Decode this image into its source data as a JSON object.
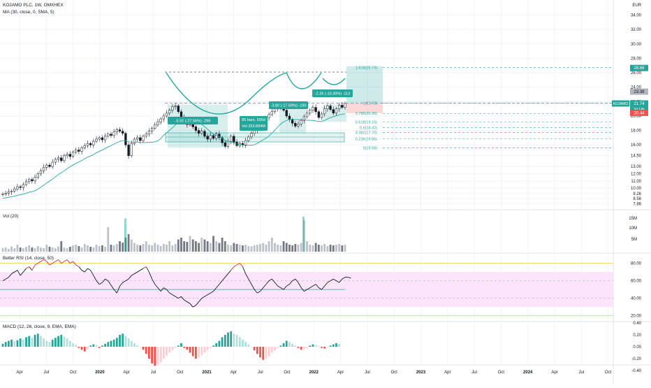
{
  "header": {
    "symbol_line": "KOJAMO PLC, 1W, OMXHEX",
    "ma_line": "MA (30, close, 0, SMA, 5)",
    "currency": "EUR"
  },
  "price_axis": {
    "ticks": [
      "34.00",
      "32.00",
      "30.00",
      "28.00",
      "26.00",
      "24.00",
      "22.00",
      "20.00",
      "18.00",
      "16.00",
      "14.50",
      "13.00",
      "12.00",
      "11.00",
      "10.00",
      "9.26",
      "8.56",
      "7.86"
    ],
    "labels": {
      "target": "26.66",
      "upper": "23.38",
      "ticker": "KOJAMO",
      "price": "21.74",
      "countdown": "3d 14h",
      "stop": "20.44"
    }
  },
  "fib_levels": [
    "1.618(26.74)",
    "1(21.78)",
    "0.786(20.36)",
    "0.618(19.16)",
    "0.5(18.42)",
    "0.382(17.70)",
    "0.236(16.86)",
    "0(15.58)"
  ],
  "annotations": {
    "range1": "-5.92 (-27.56%) -296",
    "range2": "-3.80 (-17.69%) -190",
    "range3": "-2.26 (-10.39%) -113",
    "bars": "85 bars, 595d",
    "vol": "Vol 253.894M"
  },
  "volume_pane": {
    "title": "Vol (20)",
    "ticks": [
      "15M",
      "10M",
      "5M"
    ]
  },
  "rsi_pane": {
    "title": "Better RSI (14, close, 50)",
    "ticks": [
      "80.00",
      "60.00",
      "40.00",
      "20.00"
    ]
  },
  "macd_pane": {
    "title": "MACD (12, 26, close, 9, EMA, EMA)",
    "ticks": [
      "0.40",
      "0.20",
      "0.00",
      "-0.20",
      "-0.40"
    ]
  },
  "time_axis": {
    "labels": [
      "Apr",
      "Jul",
      "Oct",
      "2020",
      "Apr",
      "Jul",
      "Oct",
      "2021",
      "Apr",
      "Jul",
      "Oct",
      "2022",
      "Apr",
      "Jul",
      "Oct",
      "2023",
      "Apr",
      "Jul",
      "Oct",
      "2024",
      "Apr",
      "Jul",
      "Oct"
    ]
  },
  "colors": {
    "up": "#26a69a",
    "down": "#ef5350",
    "candle": "#131722",
    "ma": "#26a69a",
    "rsi_band": "#fce4fb",
    "grid": "#f0f3fa"
  },
  "chart_data": {
    "type": "candlestick",
    "price_series_weekly_close": [
      9.2,
      9.3,
      9.5,
      9.6,
      9.9,
      10.2,
      10.1,
      10.5,
      10.9,
      11.2,
      11.0,
      11.5,
      12.0,
      12.4,
      12.9,
      13.2,
      13.0,
      13.6,
      14.0,
      14.2,
      13.8,
      14.5,
      14.7,
      14.4,
      15.0,
      15.3,
      15.1,
      15.6,
      15.9,
      16.2,
      16.0,
      16.5,
      16.8,
      17.0,
      16.7,
      17.2,
      17.5,
      17.3,
      17.8,
      18.1,
      17.9,
      17.6,
      16.0,
      14.5,
      16.2,
      16.8,
      17.0,
      16.6,
      17.2,
      17.5,
      17.9,
      18.3,
      18.8,
      19.2,
      19.6,
      20.0,
      20.4,
      20.8,
      21.3,
      21.4,
      20.6,
      19.8,
      19.2,
      18.8,
      19.3,
      18.5,
      18.0,
      17.6,
      17.9,
      17.2,
      16.8,
      17.3,
      16.9,
      17.5,
      17.0,
      16.3,
      15.8,
      16.5,
      17.2,
      16.4,
      15.9,
      16.2,
      16.0,
      16.6,
      17.1,
      17.6,
      18.0,
      18.5,
      18.9,
      19.3,
      19.8,
      20.2,
      20.6,
      21.0,
      21.3,
      21.5,
      20.8,
      20.0,
      19.5,
      19.0,
      18.6,
      18.9,
      19.4,
      19.9,
      20.4,
      20.8,
      21.2,
      20.6,
      19.8,
      20.3,
      21.0,
      21.4,
      20.9,
      20.4,
      21.0,
      21.5,
      21.2,
      21.74
    ],
    "ma_period": 30,
    "volume_rel": [
      0.1,
      0.12,
      0.08,
      0.15,
      0.1,
      0.2,
      0.12,
      0.1,
      0.14,
      0.18,
      0.12,
      0.1,
      0.16,
      0.12,
      0.1,
      0.2,
      0.14,
      0.12,
      0.1,
      0.15,
      0.3,
      0.12,
      0.1,
      0.14,
      0.18,
      0.2,
      0.16,
      0.12,
      0.22,
      0.18,
      0.14,
      0.12,
      0.2,
      0.16,
      0.18,
      0.14,
      0.7,
      0.2,
      0.18,
      0.22,
      0.3,
      0.26,
      0.4,
      0.5,
      0.35,
      0.25,
      0.2,
      0.18,
      0.22,
      0.3,
      0.2,
      0.18,
      0.25,
      0.2,
      0.16,
      0.22,
      0.2,
      0.3,
      0.18,
      0.22,
      0.35,
      0.4,
      0.3,
      0.28,
      0.45,
      0.35,
      0.3,
      0.25,
      0.4,
      0.35,
      0.3,
      0.25,
      0.45,
      0.3,
      0.25,
      0.4,
      0.3,
      0.2,
      0.18,
      0.25,
      0.22,
      0.2,
      0.18,
      0.2,
      0.16,
      0.15,
      0.18,
      0.2,
      0.22,
      0.25,
      0.2,
      0.3,
      0.4,
      0.25,
      0.2,
      0.18,
      0.3,
      0.25,
      0.2,
      0.18,
      0.22,
      0.2,
      0.25,
      0.9,
      0.3,
      0.2,
      0.18,
      0.25,
      0.2,
      0.18,
      0.22,
      0.16,
      0.2,
      0.18,
      0.2,
      0.22,
      0.18,
      0.2
    ],
    "rsi": [
      60,
      62,
      64,
      68,
      70,
      72,
      66,
      70,
      74,
      76,
      72,
      78,
      80,
      82,
      84,
      82,
      78,
      80,
      82,
      84,
      80,
      82,
      84,
      80,
      82,
      78,
      76,
      72,
      70,
      74,
      72,
      66,
      60,
      56,
      58,
      62,
      60,
      55,
      50,
      46,
      54,
      58,
      60,
      62,
      66,
      68,
      70,
      72,
      74,
      76,
      70,
      62,
      56,
      52,
      48,
      52,
      50,
      46,
      44,
      42,
      40,
      42,
      38,
      36,
      34,
      30,
      32,
      36,
      40,
      42,
      44,
      46,
      48,
      52,
      56,
      60,
      64,
      68,
      72,
      76,
      78,
      80,
      76,
      68,
      62,
      56,
      50,
      46,
      48,
      52,
      56,
      60,
      62,
      58,
      54,
      52,
      50,
      54,
      56,
      60,
      62,
      58,
      52,
      48,
      50,
      52,
      54,
      56,
      52,
      50,
      54,
      58,
      60,
      62,
      60,
      58,
      62,
      64,
      64,
      63
    ],
    "macd_hist": [
      0.05,
      0.08,
      0.1,
      0.12,
      0.09,
      0.11,
      0.14,
      0.12,
      0.16,
      0.18,
      0.15,
      0.2,
      0.22,
      0.18,
      0.14,
      0.1,
      0.08,
      0.12,
      0.15,
      0.18,
      0.2,
      0.17,
      0.14,
      0.1,
      0.06,
      0.03,
      -0.02,
      -0.05,
      -0.08,
      -0.04,
      0.02,
      0.04,
      0.03,
      -0.02,
      0.02,
      0.05,
      0.08,
      0.1,
      0.12,
      0.15,
      0.2,
      0.22,
      0.18,
      0.14,
      0.1,
      0.06,
      0.02,
      0.0,
      -0.05,
      -0.12,
      -0.2,
      -0.28,
      -0.32,
      -0.3,
      -0.26,
      -0.2,
      -0.15,
      -0.1,
      -0.06,
      -0.02,
      0.02,
      0.06,
      -0.02,
      -0.05,
      -0.1,
      -0.16,
      -0.2,
      -0.18,
      -0.14,
      -0.1,
      -0.06,
      -0.02,
      0.02,
      0.06,
      0.1,
      0.16,
      0.2,
      0.24,
      0.26,
      0.22,
      0.2,
      0.16,
      0.12,
      0.08,
      0.04,
      0.0,
      -0.06,
      -0.12,
      -0.18,
      -0.22,
      -0.2,
      -0.16,
      -0.1,
      -0.06,
      -0.02,
      0.02,
      0.06,
      0.1,
      0.08,
      0.05,
      0.02,
      -0.02,
      -0.05,
      -0.04,
      -0.02,
      0.02,
      0.04,
      0.03,
      0.01,
      -0.02,
      -0.03,
      -0.01,
      0.02,
      0.04,
      0.06,
      0.05
    ]
  }
}
